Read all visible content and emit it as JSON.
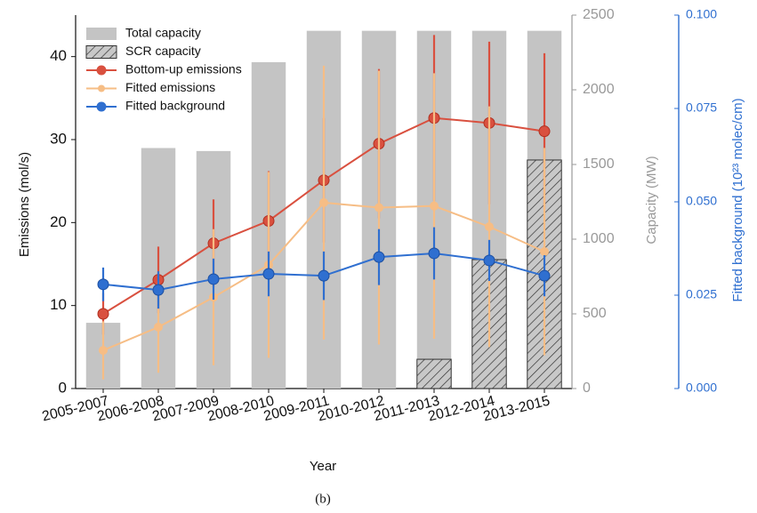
{
  "chart_data": {
    "type": "combo",
    "x_label": "Year",
    "y_label": "Emissions (mol/s)",
    "y2_label": "Capacity (MW)",
    "y3_label": "Fitted background (10²³ molec/cm)",
    "caption": "(b)",
    "legend": "upper left",
    "categories": [
      "2005-2007",
      "2006-2008",
      "2007-2009",
      "2008-2010",
      "2009-2011",
      "2010-2012",
      "2011-2013",
      "2012-2014",
      "2013-2015"
    ],
    "ylim": [
      0,
      45
    ],
    "yticks": [
      0,
      10,
      20,
      30,
      40
    ],
    "y2lim": [
      0,
      2500
    ],
    "y2ticks": [
      0,
      500,
      1000,
      1500,
      2000,
      2500
    ],
    "y3lim": [
      0,
      0.1
    ],
    "y3ticks": [
      {
        "value": 0,
        "label": "0.000"
      },
      {
        "value": 0.025,
        "label": "0.025"
      },
      {
        "value": 0.05,
        "label": "0.050"
      },
      {
        "value": 0.075,
        "label": "0.075"
      },
      {
        "value": 0.1,
        "label": "0.100"
      }
    ],
    "series": [
      {
        "name": "Total capacity",
        "type": "bar",
        "axis": "y2",
        "color": "#c4c4c4",
        "values": [
          440,
          1610,
          1590,
          2185,
          2395,
          2395,
          2395,
          2395,
          2395
        ]
      },
      {
        "name": "SCR capacity",
        "type": "bar",
        "hatch": true,
        "axis": "y2",
        "color": "#b0b0b0",
        "values": [
          null,
          null,
          null,
          null,
          null,
          null,
          196,
          863,
          1530
        ]
      },
      {
        "name": "Bottom-up emissions",
        "type": "line",
        "axis": "y",
        "color": "#d9503f",
        "values": [
          9.0,
          13.1,
          17.5,
          20.2,
          25.1,
          29.5,
          32.6,
          32.0,
          31.0
        ],
        "errors": [
          2.5,
          4.0,
          5.3,
          6.0,
          7.5,
          9.0,
          10.0,
          9.8,
          9.4
        ]
      },
      {
        "name": "Fitted emissions",
        "type": "line",
        "axis": "y",
        "color": "#f6bd85",
        "values": [
          4.6,
          7.4,
          11.0,
          14.9,
          22.4,
          21.8,
          22.0,
          19.5,
          16.5
        ],
        "errors": [
          3.5,
          5.5,
          8.2,
          11.2,
          16.5,
          16.5,
          16.0,
          14.5,
          12.5
        ]
      },
      {
        "name": "Fitted background",
        "type": "line",
        "axis": "y3",
        "color": "#2f6fd0",
        "values": [
          0.0279,
          0.0264,
          0.0293,
          0.0307,
          0.0302,
          0.0352,
          0.0362,
          0.0343,
          0.0302
        ],
        "errors": [
          0.0045,
          0.005,
          0.0055,
          0.006,
          0.0065,
          0.0075,
          0.007,
          0.0055,
          0.0055
        ]
      }
    ]
  }
}
